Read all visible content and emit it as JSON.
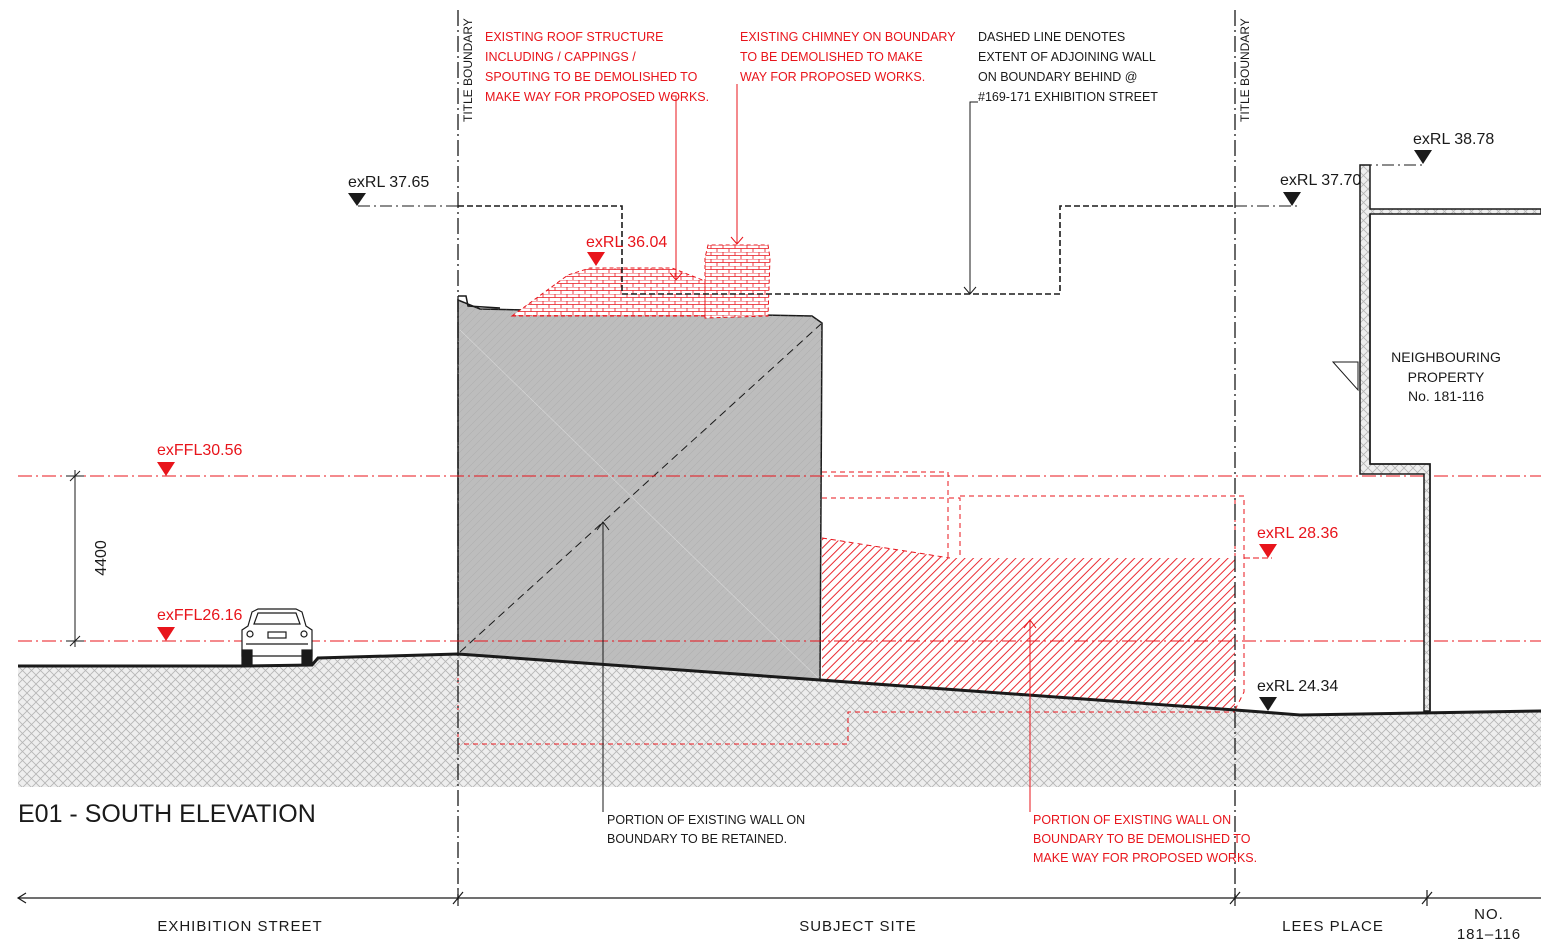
{
  "drawing_title": "E01 - SOUTH ELEVATION",
  "boundary_labels": {
    "left": "TITLE BOUNDARY",
    "right": "TITLE BOUNDARY"
  },
  "levels": {
    "rl_3765": "exRL 37.65",
    "rl_3604": "exRL 36.04",
    "rl_3770": "exRL 37.70",
    "rl_3878": "exRL 38.78",
    "ffl_3056": "exFFL30.56",
    "ffl_2616": "exFFL26.16",
    "rl_2836": "exRL 28.36",
    "rl_2434": "exRL 24.34"
  },
  "dimension": "4400",
  "notes": {
    "roof": [
      "EXISTING ROOF STRUCTURE",
      "INCLUDING / CAPPINGS /",
      "SPOUTING TO BE DEMOLISHED TO",
      "MAKE WAY FOR PROPOSED WORKS."
    ],
    "chimney": [
      "EXISTING CHIMNEY ON BOUNDARY",
      "TO BE DEMOLISHED TO MAKE",
      "WAY FOR PROPOSED WORKS."
    ],
    "dashed": [
      "DASHED LINE DENOTES",
      "EXTENT OF ADJOINING WALL",
      "ON BOUNDARY BEHIND @",
      "#169-171 EXHIBITION STREET"
    ],
    "retained": [
      "PORTION OF EXISTING WALL ON",
      "BOUNDARY TO BE RETAINED."
    ],
    "demolished": [
      "PORTION OF EXISTING WALL ON",
      "BOUNDARY TO BE DEMOLISHED TO",
      "MAKE WAY FOR PROPOSED WORKS."
    ]
  },
  "neighbour": [
    "NEIGHBOURING",
    "PROPERTY",
    "No. 181-116"
  ],
  "zones": {
    "exhibition": "EXHIBITION STREET",
    "subject": "SUBJECT SITE",
    "lees": "LEES PLACE",
    "no_line1": "NO.",
    "no_line2": "181–116"
  },
  "colors": {
    "demolish_red": "#e8141b",
    "retained_grey": "#bdbdbd",
    "line_black": "#1a1a1a"
  }
}
